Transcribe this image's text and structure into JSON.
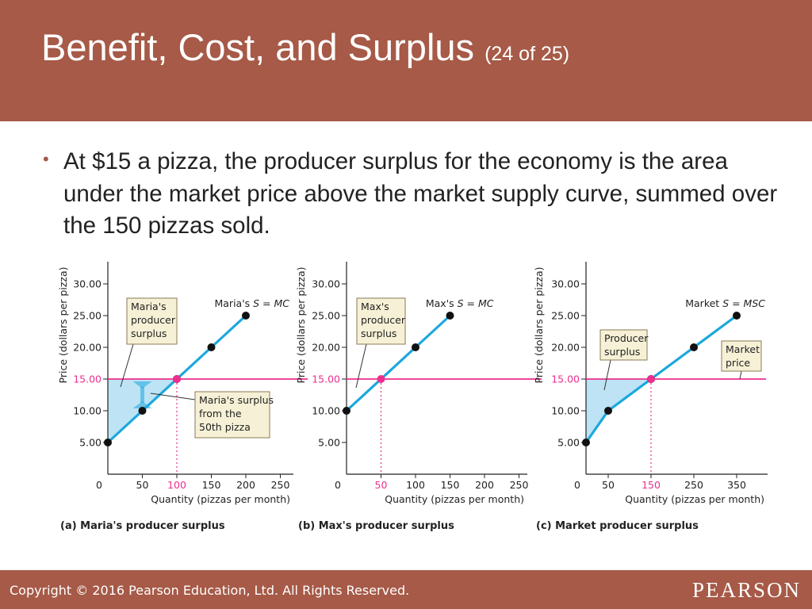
{
  "slide": {
    "title": "Benefit, Cost, and Surplus",
    "counter": "(24 of 25)",
    "bullet": "At $15 a pizza, the producer surplus for the economy is the area under the market price above the market supply curve, summed over the 150 pizzas sold.",
    "copyright": "Copyright © 2016 Pearson Education, Ltd. All Rights Reserved.",
    "brand": "PEARSON"
  },
  "colors": {
    "header": "#a65a47",
    "supply_line": "#1ba8dd",
    "surplus_fill": "#bde3f5",
    "price_line": "#ee2f8e",
    "point": "#111111",
    "callout_fill": "#f6f1d6",
    "callout_border": "#8a7a55"
  },
  "chart_data": [
    {
      "type": "line",
      "caption": "(a) Maria's producer surplus",
      "ylabel": "Price (dollars per pizza)",
      "xlabel": "Quantity (pizzas per month)",
      "xlim": [
        0,
        250
      ],
      "ylim": [
        0,
        30
      ],
      "xticks": [
        "0",
        "50",
        "100",
        "150",
        "200",
        "250"
      ],
      "yticks": [
        "5.00",
        "10.00",
        "15.00",
        "20.00",
        "25.00",
        "30.00"
      ],
      "highlight_xtick": "100",
      "highlight_ytick": "15.00",
      "price": 15,
      "quantity_sold": 100,
      "series": [
        {
          "name": "Maria's S = MC",
          "x": [
            0,
            50,
            100,
            150,
            200
          ],
          "y": [
            5,
            10,
            15,
            20,
            25
          ]
        }
      ],
      "callouts": [
        "Maria's\nproducer\nsurplus",
        "Maria's surplus\nfrom the\n50th pizza"
      ]
    },
    {
      "type": "line",
      "caption": "(b) Max's producer surplus",
      "ylabel": "Price (dollars per pizza)",
      "xlabel": "Quantity (pizzas per month)",
      "xlim": [
        0,
        250
      ],
      "ylim": [
        0,
        30
      ],
      "xticks": [
        "0",
        "50",
        "100",
        "150",
        "200",
        "250"
      ],
      "yticks": [
        "5.00",
        "10.00",
        "15.00",
        "20.00",
        "25.00",
        "30.00"
      ],
      "highlight_xtick": "50",
      "highlight_ytick": "15.00",
      "price": 15,
      "quantity_sold": 50,
      "series": [
        {
          "name": "Max's S = MC",
          "x": [
            0,
            100,
            150
          ],
          "y": [
            10,
            20,
            25
          ]
        }
      ],
      "callouts": [
        "Max's\nproducer\nsurplus"
      ]
    },
    {
      "type": "line",
      "caption": "(c) Market producer surplus",
      "ylabel": "Price (dollars per pizza)",
      "xlabel": "Quantity (pizzas per month)",
      "xlim": [
        0,
        400
      ],
      "ylim": [
        0,
        30
      ],
      "xticks": [
        "0",
        "50",
        "150",
        "250",
        "350"
      ],
      "yticks": [
        "5.00",
        "10.00",
        "15.00",
        "20.00",
        "25.00",
        "30.00"
      ],
      "highlight_xtick": "150",
      "highlight_ytick": "15.00",
      "price": 15,
      "quantity_sold": 150,
      "series": [
        {
          "name": "Market S = MSC",
          "x": [
            0,
            50,
            150,
            250,
            350
          ],
          "y": [
            5,
            10,
            15,
            20,
            25
          ]
        }
      ],
      "callouts": [
        "Producer\nsurplus",
        "Market\nprice"
      ]
    }
  ]
}
